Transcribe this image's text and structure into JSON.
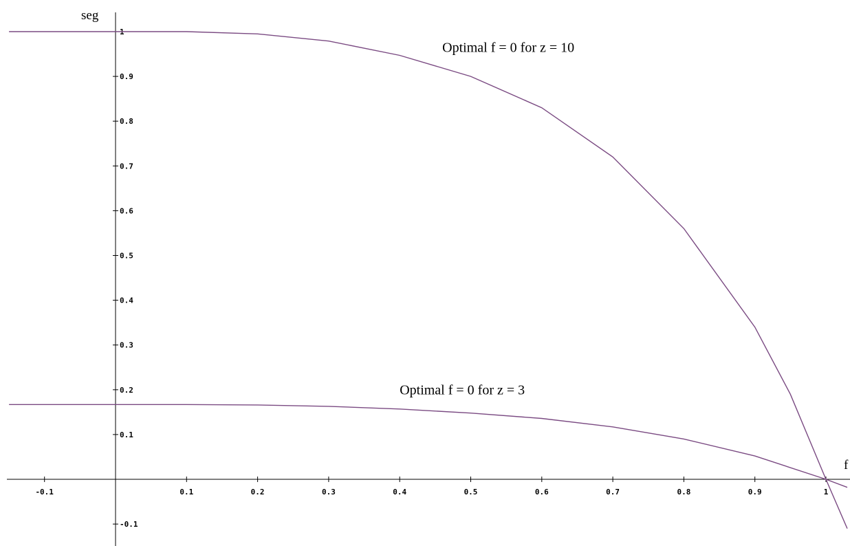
{
  "chart_data": {
    "type": "line",
    "title": "",
    "xlabel": "f",
    "ylabel": "seg",
    "xlim": [
      -0.15,
      1.03
    ],
    "ylim": [
      -0.15,
      1.03
    ],
    "x_ticks": [
      -0.1,
      0.1,
      0.2,
      0.3,
      0.4,
      0.5,
      0.6,
      0.7,
      0.8,
      0.9,
      1
    ],
    "y_ticks": [
      -0.1,
      0.1,
      0.2,
      0.3,
      0.4,
      0.5,
      0.6,
      0.7,
      0.8,
      0.9,
      1
    ],
    "x_tick_labels": [
      "-0.1",
      "0.1",
      "0.2",
      "0.3",
      "0.4",
      "0.5",
      "0.6",
      "0.7",
      "0.8",
      "0.9",
      "1"
    ],
    "y_tick_labels": [
      "-0.1",
      "0.1",
      "0.2",
      "0.3",
      "0.4",
      "0.5",
      "0.6",
      "0.7",
      "0.8",
      "0.9",
      "1"
    ],
    "grid": false,
    "line_color": "#7a4a82",
    "series": [
      {
        "x": [
          -0.15,
          -0.1,
          0,
          0.1,
          0.2,
          0.3,
          0.4,
          0.5,
          0.6,
          0.7,
          0.8,
          0.9,
          0.95,
          1,
          1.03
        ],
        "y": [
          1,
          1,
          1,
          1,
          0.995,
          0.979,
          0.947,
          0.9,
          0.83,
          0.72,
          0.56,
          0.34,
          0.19,
          0,
          -0.11
        ]
      },
      {
        "x": [
          -0.15,
          -0.1,
          0,
          0.1,
          0.2,
          0.3,
          0.4,
          0.5,
          0.6,
          0.7,
          0.8,
          0.9,
          1,
          1.03
        ],
        "y": [
          0.167,
          0.167,
          0.167,
          0.167,
          0.166,
          0.163,
          0.157,
          0.148,
          0.136,
          0.117,
          0.09,
          0.052,
          0,
          -0.018
        ]
      }
    ],
    "annotations": [
      {
        "text": "Optimal f = 0 for z = 10",
        "x": 0.46,
        "y": 0.955
      },
      {
        "text": "Optimal f = 0 for z = 3",
        "x": 0.4,
        "y": 0.19
      }
    ]
  }
}
